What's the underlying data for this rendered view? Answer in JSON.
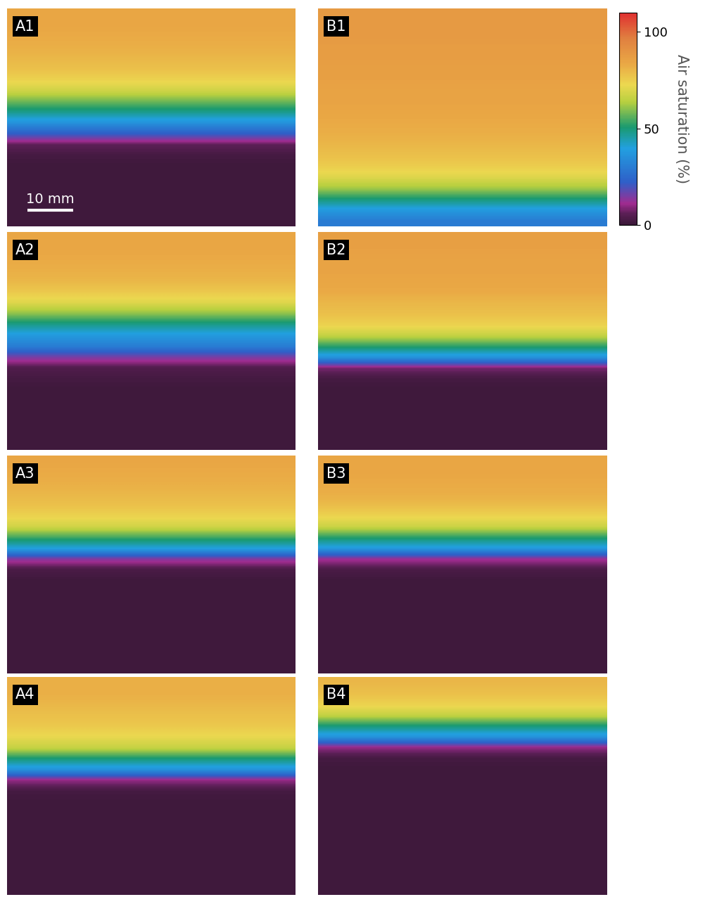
{
  "chart_data": {
    "type": "heatmap",
    "tick_labels": false,
    "columns": [
      [
        {
          "label": "A1",
          "cells": [
            [
              84
            ],
            [
              84
            ],
            [
              83
            ],
            [
              82
            ],
            [
              80
            ],
            [
              78
            ],
            [
              74
            ],
            [
              68
            ],
            [
              58
            ],
            [
              48
            ],
            [
              36
            ],
            [
              22
            ],
            [
              6
            ],
            [
              2
            ],
            [
              1
            ],
            [
              1
            ],
            [
              1
            ],
            [
              1
            ],
            [
              1
            ],
            [
              1
            ]
          ]
        },
        {
          "label": "A2",
          "cells": [
            [
              84
            ],
            [
              84
            ],
            [
              83
            ],
            [
              82
            ],
            [
              80
            ],
            [
              76
            ],
            [
              70
            ],
            [
              60
            ],
            [
              48
            ],
            [
              38
            ],
            [
              30
            ],
            [
              15
            ],
            [
              4
            ],
            [
              2
            ],
            [
              1
            ],
            [
              1
            ],
            [
              1
            ],
            [
              1
            ],
            [
              1
            ],
            [
              1
            ]
          ]
        },
        {
          "label": "A3",
          "cells": [
            [
              84
            ],
            [
              83
            ],
            [
              82
            ],
            [
              80
            ],
            [
              78
            ],
            [
              74
            ],
            [
              68
            ],
            [
              54
            ],
            [
              40
            ],
            [
              14
            ],
            [
              3
            ],
            [
              1
            ],
            [
              1
            ],
            [
              1
            ],
            [
              1
            ],
            [
              1
            ],
            [
              1
            ],
            [
              1
            ],
            [
              1
            ],
            [
              1
            ]
          ]
        },
        {
          "label": "A4",
          "cells": [
            [
              82
            ],
            [
              82
            ],
            [
              80
            ],
            [
              78
            ],
            [
              76
            ],
            [
              72
            ],
            [
              66
            ],
            [
              50
            ],
            [
              36
            ],
            [
              10
            ],
            [
              2
            ],
            [
              1
            ],
            [
              1
            ],
            [
              1
            ],
            [
              1
            ],
            [
              1
            ],
            [
              1
            ],
            [
              1
            ],
            [
              1
            ],
            [
              1
            ]
          ]
        }
      ],
      [
        {
          "label": "B1",
          "cells": [
            [
              88
            ],
            [
              88
            ],
            [
              88
            ],
            [
              87
            ],
            [
              87
            ],
            [
              86
            ],
            [
              86
            ],
            [
              85
            ],
            [
              85
            ],
            [
              84
            ],
            [
              83
            ],
            [
              82
            ],
            [
              80
            ],
            [
              78
            ],
            [
              75
            ],
            [
              70
            ],
            [
              62
            ],
            [
              50
            ],
            [
              38
            ],
            [
              30
            ]
          ]
        },
        {
          "label": "B2",
          "cells": [
            [
              86
            ],
            [
              86
            ],
            [
              85
            ],
            [
              85
            ],
            [
              84
            ],
            [
              83
            ],
            [
              80
            ],
            [
              78
            ],
            [
              74
            ],
            [
              66
            ],
            [
              52
            ],
            [
              36
            ],
            [
              8
            ],
            [
              2
            ],
            [
              1
            ],
            [
              1
            ],
            [
              1
            ],
            [
              1
            ],
            [
              1
            ],
            [
              1
            ]
          ]
        },
        {
          "label": "B3",
          "cells": [
            [
              84
            ],
            [
              84
            ],
            [
              83
            ],
            [
              82
            ],
            [
              79
            ],
            [
              74
            ],
            [
              67
            ],
            [
              52
            ],
            [
              38
            ],
            [
              12
            ],
            [
              3
            ],
            [
              1
            ],
            [
              1
            ],
            [
              1
            ],
            [
              1
            ],
            [
              1
            ],
            [
              1
            ],
            [
              1
            ],
            [
              1
            ],
            [
              1
            ]
          ]
        },
        {
          "label": "B4",
          "cells": [
            [
              80
            ],
            [
              78
            ],
            [
              74
            ],
            [
              66
            ],
            [
              50
            ],
            [
              36
            ],
            [
              10
            ],
            [
              2
            ],
            [
              1
            ],
            [
              1
            ],
            [
              1
            ],
            [
              1
            ],
            [
              1
            ],
            [
              1
            ],
            [
              1
            ],
            [
              1
            ],
            [
              1
            ],
            [
              1
            ],
            [
              1
            ],
            [
              1
            ]
          ]
        }
      ]
    ],
    "colorbar": {
      "label": "Air saturation (%)",
      "range": [
        0,
        110
      ],
      "ticks": [
        0,
        50,
        100
      ]
    },
    "scale_bar": {
      "label": "10 mm",
      "length": 10
    }
  }
}
